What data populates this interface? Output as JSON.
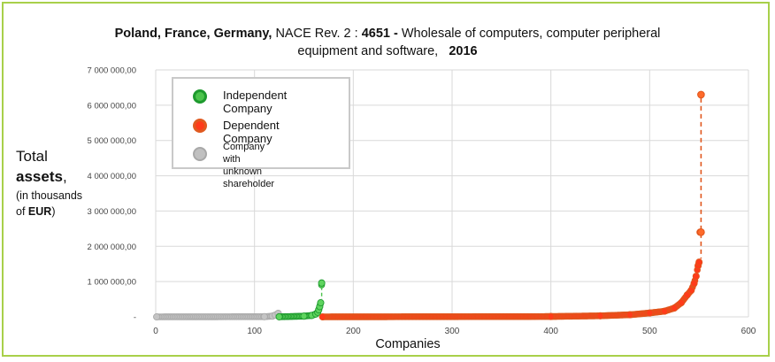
{
  "title": {
    "countries": "Poland, France, Germany,",
    "nace_prefix": "NACE Rev. 2 :",
    "nace_code": "4651 -",
    "sector_line1": "Wholesale of computers, computer peripheral",
    "sector_line2": "equipment and software,",
    "year": "2016"
  },
  "y_axis_label": {
    "line1": "Total",
    "line2_bold": "assets",
    "line2_rest": ",",
    "line3": "(in thousands",
    "line4_prefix": "of ",
    "line4_bold": "EUR",
    "line4_suffix": ")"
  },
  "legend": {
    "items": [
      {
        "label": "Independent Company",
        "color": "#4cc44c",
        "edge": "#1e9a2e"
      },
      {
        "label": "Dependent Company",
        "color": "#ff3b1a",
        "edge": "#e05a20"
      },
      {
        "label_line1": "Company with",
        "label_line2": "unknown shareholder",
        "color": "#c0c0c0",
        "edge": "#a8a8a8"
      }
    ]
  },
  "chart_data": {
    "type": "scatter",
    "title": "Poland, France, Germany, NACE Rev. 2 : 4651 - Wholesale of computers, computer peripheral equipment and software, 2016",
    "xlabel": "Companies",
    "ylabel": "Total assets, (in thousands of EUR)",
    "xlim": [
      0,
      600
    ],
    "ylim": [
      0,
      7000000
    ],
    "x_ticks": [
      "0",
      "100",
      "200",
      "300",
      "400",
      "500",
      "600"
    ],
    "y_ticks": [
      "-",
      "1 000 000,00",
      "2 000 000,00",
      "3 000 000,00",
      "4 000 000,00",
      "5 000 000,00",
      "6 000 000,00",
      "7 000 000,00"
    ],
    "grid": true,
    "legend_position": "top-left",
    "series": [
      {
        "name": "Company with unknown shareholder",
        "color": "#c0c0c0",
        "x_range": [
          1,
          124
        ],
        "values": [
          [
            1,
            0
          ],
          [
            110,
            5000
          ],
          [
            118,
            20000
          ],
          [
            121,
            50000
          ],
          [
            124,
            100000
          ]
        ]
      },
      {
        "name": "Independent Company",
        "color": "#4cc44c",
        "x_range": [
          125,
          168
        ],
        "values": [
          [
            125,
            2000
          ],
          [
            150,
            20000
          ],
          [
            158,
            40000
          ],
          [
            162,
            80000
          ],
          [
            164,
            130000
          ],
          [
            165,
            200000
          ],
          [
            166,
            290000
          ],
          [
            167,
            400000
          ],
          [
            168,
            960000
          ]
        ]
      },
      {
        "name": "Dependent Company",
        "color": "#ff3b1a",
        "x_range": [
          169,
          550
        ],
        "values": [
          [
            169,
            0
          ],
          [
            400,
            10000
          ],
          [
            450,
            30000
          ],
          [
            480,
            60000
          ],
          [
            500,
            110000
          ],
          [
            515,
            160000
          ],
          [
            525,
            250000
          ],
          [
            532,
            400000
          ],
          [
            538,
            620000
          ],
          [
            542,
            750000
          ],
          [
            545,
            950000
          ],
          [
            547,
            1150000
          ],
          [
            549,
            1450000
          ],
          [
            550,
            1550000
          ],
          [
            551,
            2400000
          ],
          [
            552,
            6300000
          ]
        ]
      }
    ]
  },
  "colors": {
    "frame": "#a8d04a",
    "grid": "#d9d9d9",
    "independent": "#4cc44c",
    "dependent": "#ff3b1a",
    "unknown": "#c0c0c0"
  }
}
